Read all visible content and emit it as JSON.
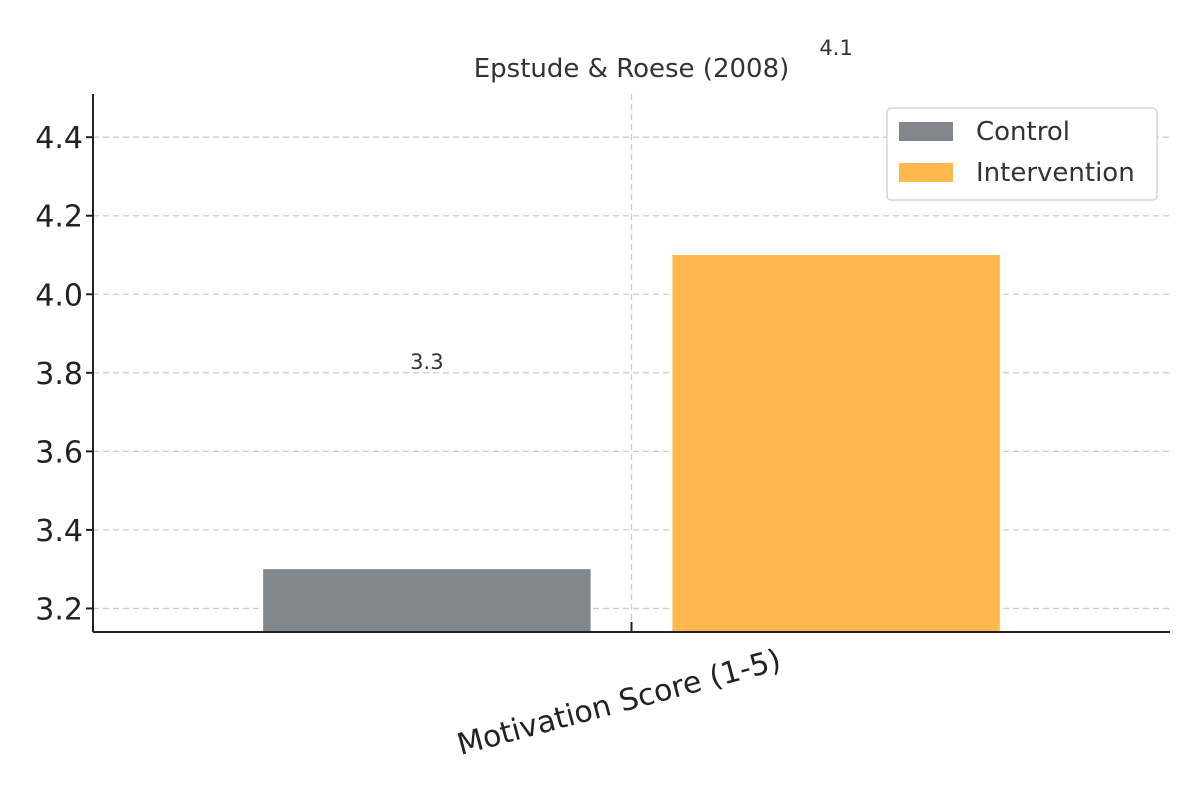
{
  "chart_data": {
    "type": "bar",
    "title": "Epstude & Roese (2008)",
    "categories": [
      "Motivation Score (1-5)"
    ],
    "series": [
      {
        "name": "Control",
        "values": [
          3.3
        ],
        "color": "#82878e",
        "value_label": "3.3"
      },
      {
        "name": "Intervention",
        "values": [
          4.1
        ],
        "color": "#ffb84d",
        "value_label": "4.1"
      }
    ],
    "ylim": [
      3.14,
      4.51
    ],
    "yticks": [
      3.2,
      3.4,
      3.6,
      3.8,
      4.0,
      4.2,
      4.4
    ],
    "ytick_labels": [
      "3.2",
      "3.4",
      "3.6",
      "3.8",
      "4.0",
      "4.2",
      "4.4"
    ],
    "xlabel": "",
    "ylabel": "",
    "grid": true,
    "legend_position": "top-right",
    "x_tick_rotation_deg": -15
  }
}
